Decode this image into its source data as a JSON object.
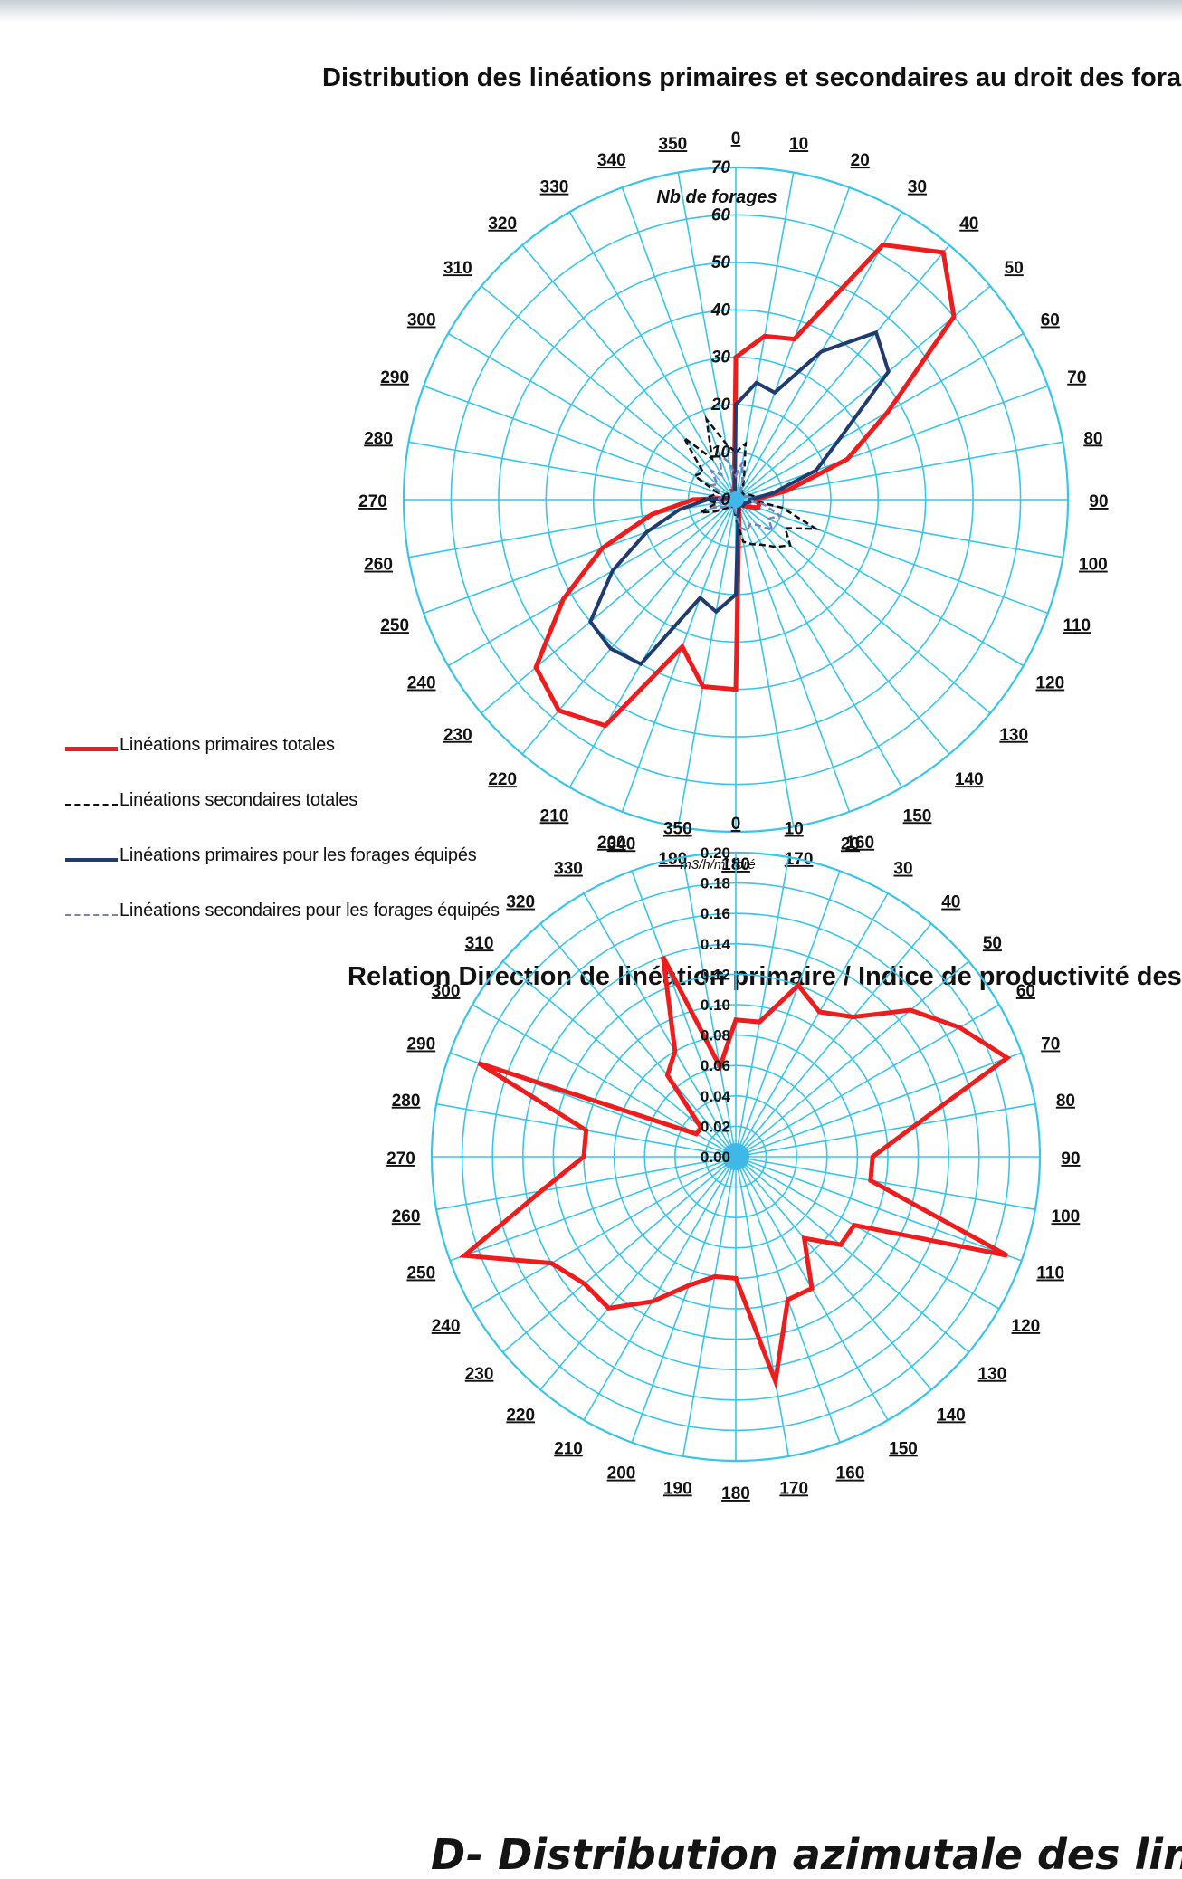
{
  "chart_data": [
    {
      "type": "radar",
      "title": "Distribution des linéations primaires et secondaires au droit des forage",
      "radial_label": "Nb de forages",
      "rlim": [
        0,
        70
      ],
      "radial_ticks": [
        "0",
        "10",
        "20",
        "30",
        "40",
        "50",
        "60",
        "70"
      ],
      "angle_labels": [
        "0",
        "10",
        "20",
        "30",
        "40",
        "50",
        "60",
        "70",
        "80",
        "90",
        "100",
        "110",
        "120",
        "130",
        "140",
        "150",
        "160",
        "170",
        "180",
        "190",
        "200",
        "210",
        "220",
        "230",
        "240",
        "250",
        "260",
        "270",
        "280",
        "290",
        "300",
        "310",
        "320",
        "330",
        "340",
        "350"
      ],
      "directions": [
        0,
        10,
        20,
        30,
        40,
        50,
        60,
        70,
        80,
        90,
        100,
        110,
        120,
        130,
        140,
        150,
        160,
        170,
        180,
        190,
        200,
        210,
        220,
        230,
        240,
        250,
        260,
        270,
        280,
        290,
        300,
        310,
        320,
        330,
        340,
        350
      ],
      "legend_position": "left-bottom",
      "series": [
        {
          "name": "Linéations primaires totales",
          "color": "#ee1c1c",
          "style": "solid",
          "width": 5,
          "values": [
            30,
            35,
            36,
            62,
            68,
            60,
            37,
            25,
            11,
            4,
            5,
            5,
            3,
            2,
            1,
            1,
            2,
            4,
            40,
            40,
            33,
            55,
            58,
            55,
            42,
            30,
            18,
            9,
            2,
            1,
            1,
            1,
            1,
            1,
            2,
            2
          ]
        },
        {
          "name": "Linéations secondaires totales",
          "color": "#111111",
          "style": "dash",
          "width": 2.5,
          "values": [
            10,
            12,
            5,
            3,
            2,
            2,
            2,
            3,
            4,
            3,
            10,
            18,
            12,
            15,
            13,
            11,
            10,
            9,
            4,
            2,
            1,
            2,
            2,
            3,
            5,
            8,
            4,
            7,
            5,
            4,
            10,
            9,
            17,
            10,
            18,
            12
          ]
        },
        {
          "name": "Linéations primaires pour les forages équipés",
          "color": "#1f3b70",
          "style": "solid",
          "width": 4,
          "values": [
            20,
            25,
            24,
            36,
            46,
            42,
            25,
            18,
            8,
            3,
            3,
            2,
            2,
            2,
            1,
            1,
            2,
            3,
            20,
            24,
            22,
            40,
            41,
            40,
            30,
            20,
            12,
            6,
            2,
            1,
            1,
            1,
            1,
            1,
            1,
            1
          ]
        },
        {
          "name": "Linéations secondaires pour les forages équipés",
          "color": "#7a7fb8",
          "style": "dash",
          "width": 2.5,
          "values": [
            5,
            8,
            4,
            2,
            2,
            2,
            2,
            2,
            3,
            3,
            6,
            10,
            8,
            10,
            7,
            6,
            7,
            6,
            3,
            2,
            1,
            1,
            2,
            2,
            3,
            5,
            3,
            4,
            3,
            3,
            6,
            5,
            8,
            6,
            10,
            8
          ]
        }
      ]
    },
    {
      "type": "radar",
      "title": "Relation Direction de linéation primaire / Indice de productivité des for",
      "radial_label": "m3/h/ml foré",
      "rlim": [
        0,
        0.2
      ],
      "radial_ticks": [
        "0.00",
        "0.02",
        "0.04",
        "0.06",
        "0.08",
        "0.10",
        "0.12",
        "0.14",
        "0.16",
        "0.18",
        "0.20"
      ],
      "angle_labels": [
        "0",
        "10",
        "20",
        "30",
        "40",
        "50",
        "60",
        "70",
        "80",
        "90",
        "100",
        "110",
        "120",
        "130",
        "140",
        "150",
        "160",
        "170",
        "180",
        "190",
        "200",
        "210",
        "220",
        "230",
        "240",
        "250",
        "260",
        "270",
        "280",
        "290",
        "300",
        "310",
        "320",
        "330",
        "340",
        "350"
      ],
      "directions": [
        0,
        10,
        20,
        30,
        40,
        50,
        60,
        70,
        80,
        90,
        100,
        110,
        120,
        130,
        140,
        150,
        160,
        170,
        180,
        190,
        200,
        210,
        220,
        230,
        240,
        250,
        260,
        270,
        280,
        290,
        300,
        310,
        320,
        330,
        340,
        350
      ],
      "series": [
        {
          "name": "",
          "color": "#ee1c1c",
          "style": "solid",
          "width": 5,
          "values": [
            0.09,
            0.09,
            0.12,
            0.11,
            0.12,
            0.15,
            0.17,
            0.19,
            0.12,
            0.09,
            0.09,
            0.19,
            0.09,
            0.09,
            0.07,
            0.1,
            0.1,
            0.15,
            0.08,
            0.08,
            0.09,
            0.11,
            0.13,
            0.13,
            0.14,
            0.19,
            0.13,
            0.1,
            0.1,
            0.18,
            0.03,
            0.03,
            0.07,
            0.08,
            0.14,
            0.06
          ]
        }
      ]
    }
  ],
  "footer_title": "D- Distribution azimutale des liné"
}
